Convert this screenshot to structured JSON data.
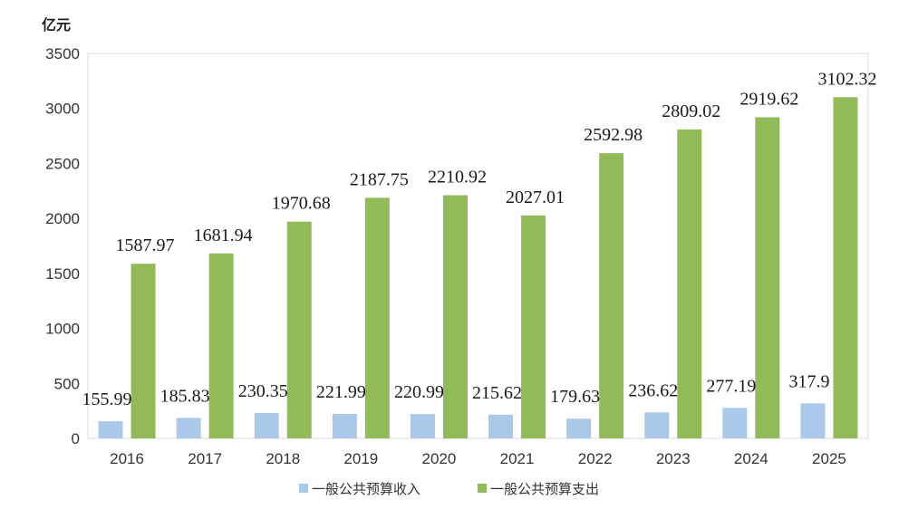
{
  "chart_data": {
    "type": "bar",
    "unit_label": "亿元",
    "categories": [
      "2016",
      "2017",
      "2018",
      "2019",
      "2020",
      "2021",
      "2022",
      "2023",
      "2024",
      "2025"
    ],
    "series": [
      {
        "name": "一般公共预算收入",
        "color": "#a9c8ea",
        "values": [
          155.99,
          185.83,
          230.35,
          221.99,
          220.99,
          215.62,
          179.63,
          236.62,
          277.19,
          317.9
        ],
        "labels": [
          "155.99",
          "185.83",
          "230.35",
          "221.99",
          "220.99",
          "215.62",
          "179.63",
          "236.62",
          "277.19",
          "317.9"
        ]
      },
      {
        "name": "一般公共预算支出",
        "color": "#93ba58",
        "values": [
          1587.97,
          1681.94,
          1970.68,
          2187.75,
          2210.92,
          2027.01,
          2592.98,
          2809.02,
          2919.62,
          3102.32
        ],
        "labels": [
          "1587.97",
          "1681.94",
          "1970.68",
          "2187.75",
          "2210.92",
          "2027.01",
          "2592.98",
          "2809.02",
          "2919.62",
          "3102.32"
        ]
      }
    ],
    "ylim": [
      0,
      3500
    ],
    "yticks": [
      "0",
      "500",
      "1000",
      "1500",
      "2000",
      "2500",
      "3000",
      "3500"
    ],
    "grid": false,
    "legend_position": "bottom"
  }
}
